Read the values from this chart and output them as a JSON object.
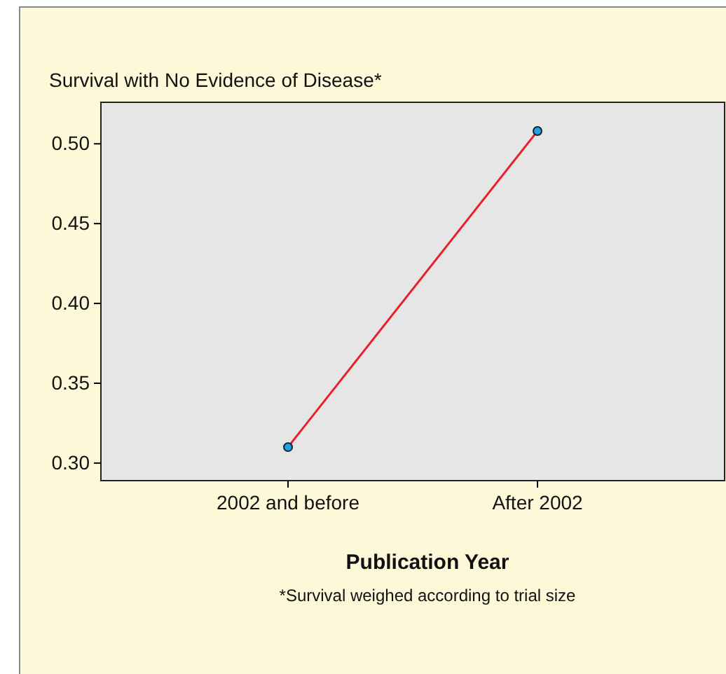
{
  "chart_data": {
    "type": "line",
    "title": "Survival with No Evidence of Disease*",
    "xlabel": "Publication Year",
    "categories": [
      "2002 and before",
      "After 2002"
    ],
    "series": [
      {
        "color": "#e8202a",
        "values": [
          0.31,
          0.508
        ]
      }
    ],
    "ylim": [
      0.289,
      0.526
    ],
    "yticks": [
      {
        "value": 0.3,
        "label": "0.30"
      },
      {
        "value": 0.35,
        "label": "0.35"
      },
      {
        "value": 0.4,
        "label": "0.40"
      },
      {
        "value": 0.45,
        "label": "0.45"
      },
      {
        "value": 0.5,
        "label": "0.50"
      }
    ],
    "marker": "circle",
    "line_style": "solid",
    "grid": false,
    "annotations": [
      "*Survival weighed according to trial size"
    ]
  }
}
